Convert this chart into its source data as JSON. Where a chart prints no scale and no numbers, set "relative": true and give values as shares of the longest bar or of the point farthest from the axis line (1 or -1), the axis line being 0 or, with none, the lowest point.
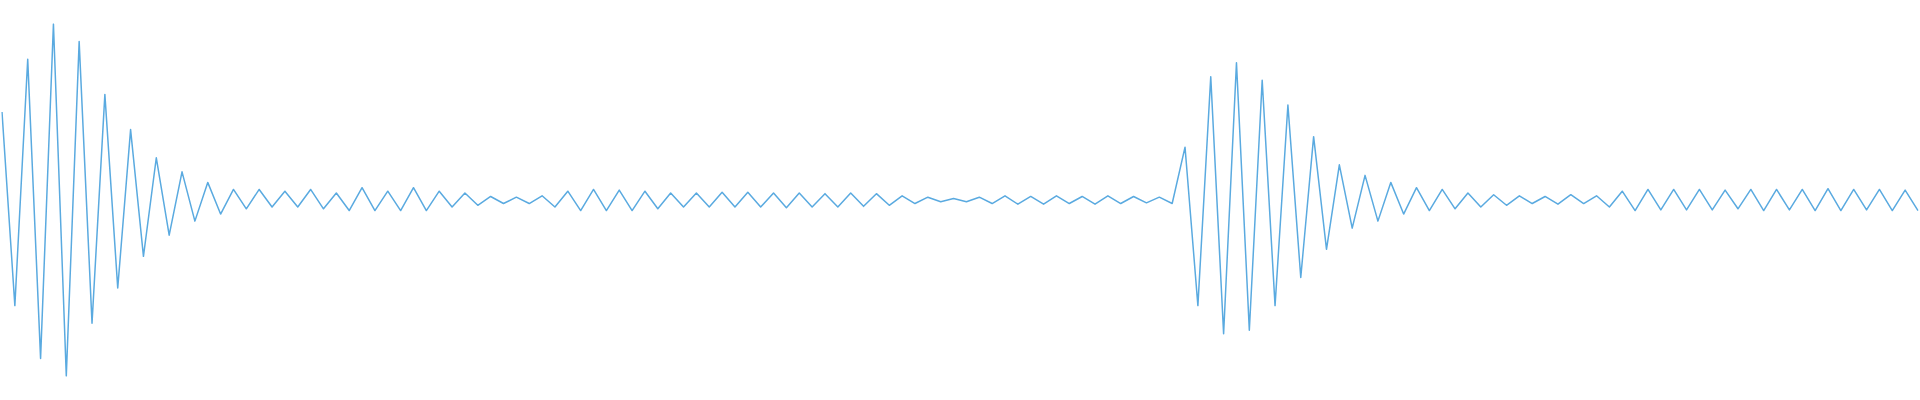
{
  "chart_data": {
    "type": "line",
    "relative": true,
    "color": "#5aaae0",
    "legend": false,
    "marker": "none",
    "line_style": "solid",
    "categories": [
      null,
      null,
      null,
      null,
      null,
      null,
      null,
      null,
      null,
      null,
      null,
      null,
      null,
      null,
      null,
      null,
      null,
      null,
      null,
      null,
      null,
      null,
      null,
      null,
      null,
      null,
      null,
      null,
      null,
      null,
      null,
      null,
      null,
      null,
      null,
      null,
      null,
      null,
      null,
      null,
      null,
      null,
      null,
      null,
      null,
      null,
      null,
      null,
      null,
      null,
      null,
      null,
      null,
      null,
      null,
      null,
      null,
      null,
      null,
      null,
      null,
      null,
      null,
      null,
      null,
      null,
      null,
      null,
      null,
      null,
      null,
      null,
      null,
      null,
      null,
      null,
      null,
      null,
      null,
      null,
      null,
      null,
      null,
      null,
      null,
      null,
      null,
      null,
      null,
      null,
      null,
      null,
      null,
      null,
      null,
      null,
      null,
      null,
      null,
      null,
      null,
      null,
      null,
      null,
      null,
      null,
      null,
      null,
      null,
      null,
      null,
      null,
      null,
      null,
      null,
      null,
      null,
      null,
      null,
      null,
      null,
      null,
      null,
      null,
      null,
      null,
      null,
      null,
      null,
      null,
      null,
      null,
      null,
      null,
      null,
      null,
      null,
      null,
      null,
      null,
      null,
      null,
      null,
      null,
      null,
      null,
      null,
      null,
      null,
      null
    ],
    "values": [
      0.75,
      0.2,
      0.9,
      0.05,
      1,
      0,
      0.95,
      0.15,
      0.8,
      0.25,
      0.7,
      0.34,
      0.62,
      0.4,
      0.58,
      0.44,
      0.55,
      0.46,
      0.53,
      0.475,
      0.53,
      0.48,
      0.525,
      0.48,
      0.53,
      0.475,
      0.52,
      0.47,
      0.535,
      0.47,
      0.525,
      0.47,
      0.535,
      0.47,
      0.525,
      0.48,
      0.52,
      0.485,
      0.51,
      0.49,
      0.508,
      0.49,
      0.512,
      0.48,
      0.525,
      0.47,
      0.53,
      0.47,
      0.528,
      0.47,
      0.525,
      0.475,
      0.52,
      0.48,
      0.52,
      0.48,
      0.522,
      0.48,
      0.522,
      0.48,
      0.52,
      0.478,
      0.52,
      0.48,
      0.518,
      0.48,
      0.52,
      0.482,
      0.518,
      0.485,
      0.512,
      0.49,
      0.508,
      0.495,
      0.504,
      0.495,
      0.508,
      0.49,
      0.512,
      0.488,
      0.51,
      0.488,
      0.512,
      0.49,
      0.51,
      0.488,
      0.512,
      0.49,
      0.51,
      0.492,
      0.508,
      0.49,
      0.65,
      0.2,
      0.85,
      0.12,
      0.89,
      0.13,
      0.84,
      0.2,
      0.77,
      0.28,
      0.68,
      0.36,
      0.6,
      0.42,
      0.57,
      0.44,
      0.55,
      0.46,
      0.535,
      0.47,
      0.53,
      0.475,
      0.52,
      0.48,
      0.515,
      0.485,
      0.512,
      0.49,
      0.51,
      0.488,
      0.515,
      0.49,
      0.512,
      0.48,
      0.525,
      0.47,
      0.53,
      0.472,
      0.53,
      0.472,
      0.53,
      0.472,
      0.528,
      0.475,
      0.53,
      0.47,
      0.53,
      0.472,
      0.53,
      0.47,
      0.532,
      0.47,
      0.53,
      0.472,
      0.53,
      0.47,
      0.528,
      0.47
    ]
  }
}
